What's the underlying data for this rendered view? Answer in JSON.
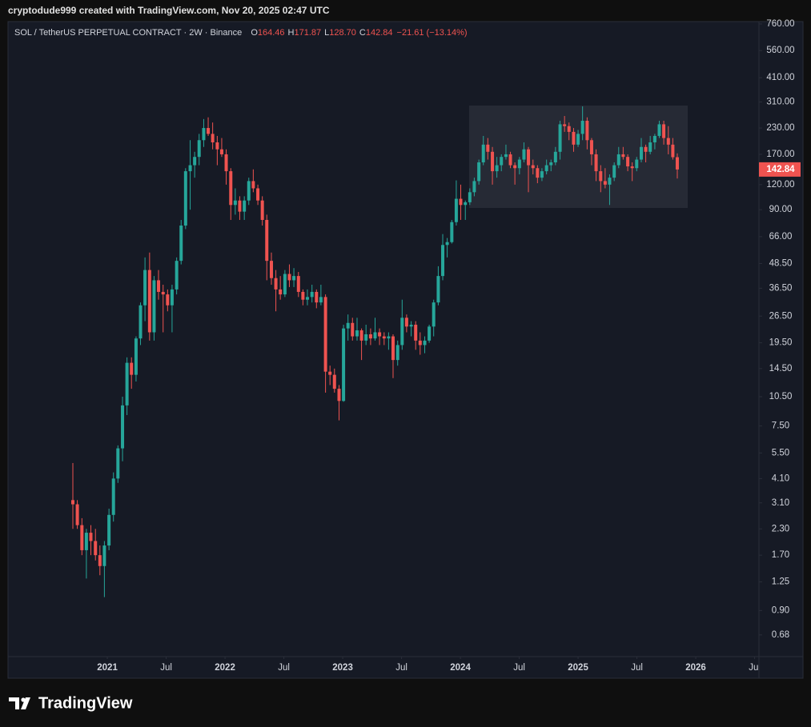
{
  "header": "cryptodude999 created with TradingView.com, Nov 20, 2025 02:47 UTC",
  "footer": "TradingView",
  "chart_data": {
    "type": "candlestick",
    "title": "SOL / TetherUS PERPETUAL CONTRACT · 2W · Binance",
    "legend": {
      "labels": [
        "O",
        "H",
        "L",
        "C"
      ],
      "value_labels": [
        "164.46",
        "171.87",
        "128.70",
        "142.84"
      ],
      "change": "−21.61 (−13.14%)"
    },
    "up_color": "#26a69a",
    "down_color": "#ef5350",
    "log": true,
    "grid": false,
    "xlim": [
      2020.156,
      2026.537
    ],
    "xticks": [
      {
        "value": 2021,
        "label": "2021"
      },
      {
        "value": 2021.5,
        "label": "Jul"
      },
      {
        "value": 2022,
        "label": "2022"
      },
      {
        "value": 2022.5,
        "label": "Jul"
      },
      {
        "value": 2023,
        "label": "2023"
      },
      {
        "value": 2023.5,
        "label": "Jul"
      },
      {
        "value": 2024,
        "label": "2024"
      },
      {
        "value": 2024.5,
        "label": "Jul"
      },
      {
        "value": 2025,
        "label": "2025"
      },
      {
        "value": 2025.5,
        "label": "Jul"
      },
      {
        "value": 2026,
        "label": "2026"
      },
      {
        "value": 2026.5,
        "label": "Jul"
      }
    ],
    "ylim": [
      0.53,
      781
    ],
    "yticks": [
      {
        "value": 760,
        "label": "760.00"
      },
      {
        "value": 560,
        "label": "560.00"
      },
      {
        "value": 410,
        "label": "410.00"
      },
      {
        "value": 310,
        "label": "310.00"
      },
      {
        "value": 230,
        "label": "230.00"
      },
      {
        "value": 170,
        "label": "170.00"
      },
      {
        "value": 120,
        "label": "120.00"
      },
      {
        "value": 90,
        "label": "90.00"
      },
      {
        "value": 66,
        "label": "66.00"
      },
      {
        "value": 48.5,
        "label": "48.50"
      },
      {
        "value": 36.5,
        "label": "36.50"
      },
      {
        "value": 26.5,
        "label": "26.50"
      },
      {
        "value": 19.5,
        "label": "19.50"
      },
      {
        "value": 14.5,
        "label": "14.50"
      },
      {
        "value": 10.5,
        "label": "10.50"
      },
      {
        "value": 7.5,
        "label": "7.50"
      },
      {
        "value": 5.5,
        "label": "5.50"
      },
      {
        "value": 4.1,
        "label": "4.10"
      },
      {
        "value": 3.1,
        "label": "3.10"
      },
      {
        "value": 2.3,
        "label": "2.30"
      },
      {
        "value": 1.7,
        "label": "1.70"
      },
      {
        "value": 1.25,
        "label": "1.25"
      },
      {
        "value": 0.9,
        "label": "0.90"
      },
      {
        "value": 0.68,
        "label": "0.68"
      }
    ],
    "x": [
      2020.707,
      2020.745,
      2020.784,
      2020.822,
      2020.86,
      2020.899,
      2020.937,
      2020.975,
      2021.014,
      2021.052,
      2021.09,
      2021.129,
      2021.167,
      2021.205,
      2021.244,
      2021.282,
      2021.32,
      2021.359,
      2021.397,
      2021.435,
      2021.474,
      2021.512,
      2021.55,
      2021.589,
      2021.627,
      2021.665,
      2021.704,
      2021.742,
      2021.78,
      2021.819,
      2021.857,
      2021.895,
      2021.934,
      2021.972,
      2022.01,
      2022.049,
      2022.087,
      2022.125,
      2022.164,
      2022.202,
      2022.24,
      2022.279,
      2022.317,
      2022.355,
      2022.394,
      2022.432,
      2022.47,
      2022.509,
      2022.547,
      2022.585,
      2022.624,
      2022.662,
      2022.7,
      2022.739,
      2022.777,
      2022.815,
      2022.854,
      2022.892,
      2022.93,
      2022.969,
      2023.007,
      2023.045,
      2023.083,
      2023.122,
      2023.16,
      2023.198,
      2023.237,
      2023.275,
      2023.313,
      2023.352,
      2023.39,
      2023.428,
      2023.467,
      2023.505,
      2023.543,
      2023.582,
      2023.62,
      2023.658,
      2023.697,
      2023.735,
      2023.773,
      2023.812,
      2023.85,
      2023.888,
      2023.927,
      2023.965,
      2024.003,
      2024.042,
      2024.08,
      2024.118,
      2024.157,
      2024.195,
      2024.233,
      2024.272,
      2024.31,
      2024.348,
      2024.387,
      2024.425,
      2024.463,
      2024.502,
      2024.54,
      2024.578,
      2024.617,
      2024.655,
      2024.693,
      2024.732,
      2024.77,
      2024.808,
      2024.847,
      2024.885,
      2024.923,
      2024.962,
      2025.0,
      2025.038,
      2025.077,
      2025.115,
      2025.153,
      2025.192,
      2025.23,
      2025.268,
      2025.307,
      2025.345,
      2025.383,
      2025.422,
      2025.46,
      2025.498,
      2025.537,
      2025.575,
      2025.613,
      2025.652,
      2025.69,
      2025.728,
      2025.767,
      2025.805,
      2025.843
    ],
    "ohlc": [
      [
        3.2,
        4.9,
        2.3,
        3.05
      ],
      [
        3.05,
        3.2,
        2.3,
        2.4
      ],
      [
        2.4,
        2.6,
        1.7,
        1.8
      ],
      [
        1.8,
        2.3,
        1.3,
        2.2
      ],
      [
        2.2,
        2.4,
        1.7,
        2.0
      ],
      [
        2.0,
        2.3,
        1.6,
        1.7
      ],
      [
        1.7,
        1.9,
        1.35,
        1.5
      ],
      [
        1.5,
        2.0,
        1.05,
        1.9
      ],
      [
        1.9,
        2.9,
        1.8,
        2.7
      ],
      [
        2.7,
        4.4,
        2.5,
        4.1
      ],
      [
        4.1,
        6.0,
        3.9,
        5.8
      ],
      [
        5.8,
        10.5,
        5.0,
        9.5
      ],
      [
        9.5,
        16.5,
        8.5,
        15.5
      ],
      [
        15.5,
        16.5,
        11.5,
        13.5
      ],
      [
        13.5,
        21,
        12.5,
        20.5
      ],
      [
        20.5,
        31,
        19,
        30
      ],
      [
        30,
        52,
        25,
        45
      ],
      [
        45,
        55,
        20,
        22
      ],
      [
        22,
        42,
        20,
        40
      ],
      [
        40,
        45,
        32,
        35
      ],
      [
        35,
        38,
        22,
        34
      ],
      [
        34,
        36,
        28,
        30
      ],
      [
        30,
        38,
        22,
        36
      ],
      [
        36,
        52,
        34,
        50
      ],
      [
        50,
        80,
        48,
        75
      ],
      [
        75,
        145,
        72,
        140
      ],
      [
        140,
        200,
        90,
        150
      ],
      [
        150,
        175,
        130,
        165
      ],
      [
        165,
        215,
        150,
        200
      ],
      [
        200,
        255,
        185,
        230
      ],
      [
        230,
        260,
        210,
        215
      ],
      [
        215,
        245,
        180,
        195
      ],
      [
        195,
        210,
        150,
        180
      ],
      [
        180,
        205,
        165,
        170
      ],
      [
        170,
        180,
        120,
        140
      ],
      [
        140,
        145,
        80,
        95
      ],
      [
        95,
        115,
        85,
        100
      ],
      [
        100,
        105,
        80,
        88
      ],
      [
        88,
        105,
        80,
        100
      ],
      [
        100,
        130,
        95,
        125
      ],
      [
        125,
        143,
        110,
        115
      ],
      [
        115,
        120,
        95,
        100
      ],
      [
        100,
        105,
        75,
        80
      ],
      [
        80,
        85,
        40,
        50
      ],
      [
        50,
        55,
        38,
        41
      ],
      [
        41,
        45,
        28,
        36
      ],
      [
        36,
        42,
        32,
        34
      ],
      [
        34,
        45,
        33,
        43
      ],
      [
        43,
        48,
        37,
        40
      ],
      [
        40,
        46,
        37,
        42
      ],
      [
        42,
        44,
        33,
        35
      ],
      [
        35,
        36,
        30,
        32
      ],
      [
        32,
        36,
        30,
        33
      ],
      [
        33,
        38,
        31,
        35
      ],
      [
        35,
        36,
        29,
        31
      ],
      [
        31,
        38,
        30,
        33
      ],
      [
        33,
        34,
        11,
        14
      ],
      [
        14,
        15,
        12,
        13.5
      ],
      [
        13.5,
        14.5,
        11,
        11.5
      ],
      [
        11.5,
        12,
        8,
        10
      ],
      [
        10,
        24,
        9.9,
        23
      ],
      [
        23,
        27,
        20,
        24.5
      ],
      [
        24.5,
        26,
        20,
        21
      ],
      [
        21,
        26,
        20,
        22.5
      ],
      [
        22.5,
        23,
        16,
        20
      ],
      [
        20,
        24,
        19,
        21.5
      ],
      [
        21.5,
        23,
        19,
        20.5
      ],
      [
        20.5,
        26,
        20,
        22
      ],
      [
        22,
        23,
        19,
        21
      ],
      [
        21,
        22,
        19,
        20.5
      ],
      [
        20.5,
        22,
        18,
        21
      ],
      [
        21,
        21.5,
        13,
        16
      ],
      [
        16,
        20,
        15,
        19
      ],
      [
        19,
        32,
        18,
        26
      ],
      [
        26,
        27,
        22,
        23.5
      ],
      [
        23.5,
        25,
        21,
        24
      ],
      [
        24,
        25,
        18,
        20
      ],
      [
        20,
        22,
        17,
        19
      ],
      [
        19,
        21,
        17.3,
        20
      ],
      [
        20,
        24,
        19.5,
        23.5
      ],
      [
        23.5,
        32,
        21,
        31
      ],
      [
        31,
        47,
        30,
        42
      ],
      [
        42,
        68,
        40,
        60
      ],
      [
        60,
        65,
        52,
        62
      ],
      [
        62,
        80,
        61,
        78
      ],
      [
        78,
        126,
        75,
        102
      ],
      [
        102,
        120,
        80,
        95
      ],
      [
        95,
        100,
        80,
        98
      ],
      [
        98,
        115,
        95,
        110
      ],
      [
        110,
        130,
        105,
        125
      ],
      [
        125,
        160,
        120,
        155
      ],
      [
        155,
        210,
        150,
        190
      ],
      [
        190,
        205,
        160,
        175
      ],
      [
        175,
        185,
        120,
        140
      ],
      [
        140,
        165,
        130,
        150
      ],
      [
        150,
        170,
        140,
        165
      ],
      [
        165,
        190,
        160,
        170
      ],
      [
        170,
        175,
        145,
        150
      ],
      [
        150,
        155,
        120,
        145
      ],
      [
        145,
        165,
        135,
        160
      ],
      [
        160,
        195,
        155,
        180
      ],
      [
        180,
        185,
        110,
        150
      ],
      [
        150,
        160,
        135,
        145
      ],
      [
        145,
        150,
        122,
        130
      ],
      [
        130,
        145,
        125,
        140
      ],
      [
        140,
        160,
        135,
        150
      ],
      [
        150,
        160,
        140,
        155
      ],
      [
        155,
        185,
        150,
        175
      ],
      [
        175,
        250,
        160,
        240
      ],
      [
        240,
        264,
        220,
        235
      ],
      [
        235,
        245,
        200,
        220
      ],
      [
        220,
        230,
        175,
        190
      ],
      [
        190,
        225,
        185,
        215
      ],
      [
        215,
        295,
        200,
        250
      ],
      [
        250,
        260,
        180,
        200
      ],
      [
        200,
        205,
        150,
        170
      ],
      [
        170,
        180,
        125,
        140
      ],
      [
        140,
        150,
        110,
        125
      ],
      [
        125,
        145,
        115,
        120
      ],
      [
        120,
        135,
        95,
        130
      ],
      [
        130,
        155,
        125,
        150
      ],
      [
        150,
        185,
        145,
        170
      ],
      [
        170,
        185,
        160,
        165
      ],
      [
        165,
        170,
        140,
        148
      ],
      [
        148,
        155,
        125,
        145
      ],
      [
        145,
        165,
        140,
        160
      ],
      [
        160,
        205,
        155,
        185
      ],
      [
        185,
        190,
        155,
        175
      ],
      [
        175,
        210,
        170,
        195
      ],
      [
        195,
        215,
        180,
        210
      ],
      [
        210,
        250,
        205,
        240
      ],
      [
        240,
        250,
        190,
        205
      ],
      [
        205,
        235,
        170,
        190
      ],
      [
        190,
        205,
        160,
        164.46
      ],
      [
        164.46,
        171.87,
        128.7,
        142.84
      ]
    ]
  }
}
